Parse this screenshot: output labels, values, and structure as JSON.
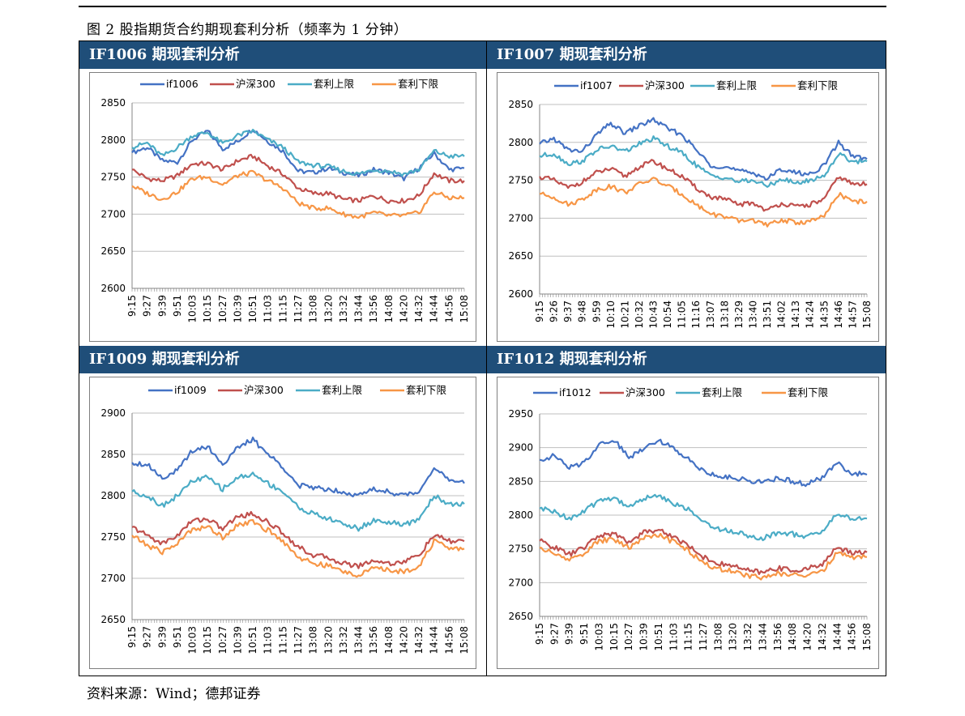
{
  "caption": "图 2 股指期货合约期现套利分析（频率为 1 分钟）",
  "source": "资料来源：Wind；德邦证券",
  "colors": {
    "header_bg": "#1f4e79",
    "futures": "#4472c4",
    "hs300": "#c0504d",
    "upper": "#4bacc6",
    "lower": "#f79646",
    "grid": "#bfbfbf"
  },
  "panels": [
    {
      "header": "IF1006 期现套利分析"
    },
    {
      "header": "IF1007 期现套利分析"
    },
    {
      "header": "IF1009 期现套利分析"
    },
    {
      "header": "IF1012 期现套利分析"
    }
  ],
  "chart_data": [
    {
      "type": "line",
      "title": "",
      "x": [
        "9:15",
        "9:27",
        "9:39",
        "9:51",
        "10:03",
        "10:15",
        "10:27",
        "10:39",
        "10:51",
        "11:03",
        "11:15",
        "11:27",
        "13:08",
        "13:20",
        "13:32",
        "13:44",
        "13:56",
        "14:08",
        "14:20",
        "14:32",
        "14:44",
        "14:56",
        "15:08"
      ],
      "ylim": [
        2600,
        2850
      ],
      "yticks": [
        2600,
        2650,
        2700,
        2750,
        2800,
        2850
      ],
      "legend_position": "top",
      "series": [
        {
          "name": "if1006",
          "values": [
            2783,
            2790,
            2772,
            2770,
            2800,
            2812,
            2788,
            2798,
            2815,
            2798,
            2785,
            2758,
            2756,
            2762,
            2756,
            2752,
            2760,
            2756,
            2748,
            2762,
            2782,
            2760,
            2762
          ]
        },
        {
          "name": "沪深300",
          "values": [
            2760,
            2748,
            2745,
            2752,
            2768,
            2768,
            2760,
            2772,
            2778,
            2765,
            2754,
            2735,
            2728,
            2728,
            2720,
            2718,
            2725,
            2718,
            2718,
            2725,
            2755,
            2745,
            2745
          ]
        },
        {
          "name": "套利上限",
          "values": [
            2790,
            2796,
            2778,
            2790,
            2806,
            2810,
            2795,
            2806,
            2812,
            2800,
            2790,
            2770,
            2766,
            2764,
            2758,
            2754,
            2760,
            2758,
            2754,
            2760,
            2785,
            2778,
            2778
          ]
        },
        {
          "name": "套利下限",
          "values": [
            2738,
            2728,
            2720,
            2730,
            2748,
            2750,
            2740,
            2752,
            2756,
            2745,
            2735,
            2715,
            2708,
            2708,
            2700,
            2696,
            2702,
            2698,
            2698,
            2702,
            2730,
            2722,
            2722
          ]
        }
      ]
    },
    {
      "type": "line",
      "title": "",
      "x": [
        "9:15",
        "9:26",
        "9:37",
        "9:48",
        "9:59",
        "10:10",
        "10:21",
        "10:32",
        "10:43",
        "10:54",
        "11:05",
        "11:16",
        "13:07",
        "13:18",
        "13:29",
        "13:40",
        "13:51",
        "14:02",
        "14:13",
        "14:24",
        "14:35",
        "14:46",
        "14:57",
        "15:08"
      ],
      "ylim": [
        2600,
        2850
      ],
      "yticks": [
        2600,
        2650,
        2700,
        2750,
        2800,
        2850
      ],
      "legend_position": "top",
      "series": [
        {
          "name": "if1007",
          "values": [
            2798,
            2805,
            2790,
            2788,
            2810,
            2825,
            2812,
            2822,
            2830,
            2818,
            2810,
            2790,
            2770,
            2768,
            2762,
            2760,
            2752,
            2765,
            2760,
            2758,
            2770,
            2800,
            2782,
            2778
          ]
        },
        {
          "name": "沪深300",
          "values": [
            2755,
            2750,
            2740,
            2748,
            2760,
            2765,
            2755,
            2768,
            2775,
            2765,
            2755,
            2740,
            2728,
            2725,
            2718,
            2720,
            2710,
            2720,
            2715,
            2718,
            2725,
            2755,
            2745,
            2745
          ]
        },
        {
          "name": "套利上限",
          "values": [
            2782,
            2785,
            2772,
            2775,
            2790,
            2795,
            2788,
            2798,
            2805,
            2795,
            2786,
            2770,
            2756,
            2754,
            2748,
            2750,
            2742,
            2752,
            2746,
            2750,
            2756,
            2785,
            2775,
            2775
          ]
        },
        {
          "name": "套利下限",
          "values": [
            2732,
            2728,
            2718,
            2725,
            2738,
            2742,
            2734,
            2745,
            2752,
            2742,
            2732,
            2718,
            2706,
            2702,
            2696,
            2698,
            2690,
            2698,
            2694,
            2696,
            2702,
            2732,
            2722,
            2722
          ]
        }
      ]
    },
    {
      "type": "line",
      "title": "",
      "x": [
        "9:15",
        "9:27",
        "9:39",
        "9:51",
        "10:03",
        "10:15",
        "10:27",
        "10:39",
        "10:51",
        "11:03",
        "11:15",
        "11:27",
        "13:08",
        "13:20",
        "13:32",
        "13:44",
        "13:56",
        "14:08",
        "14:20",
        "14:32",
        "14:44",
        "14:56",
        "15:08"
      ],
      "ylim": [
        2650,
        2900
      ],
      "yticks": [
        2650,
        2700,
        2750,
        2800,
        2850,
        2900
      ],
      "legend_position": "top",
      "series": [
        {
          "name": "if1009",
          "values": [
            2840,
            2838,
            2822,
            2830,
            2855,
            2860,
            2838,
            2858,
            2868,
            2850,
            2835,
            2812,
            2810,
            2808,
            2805,
            2800,
            2808,
            2805,
            2800,
            2805,
            2835,
            2818,
            2815
          ]
        },
        {
          "name": "沪深300",
          "values": [
            2762,
            2752,
            2742,
            2752,
            2770,
            2772,
            2760,
            2775,
            2778,
            2768,
            2755,
            2738,
            2728,
            2725,
            2718,
            2715,
            2722,
            2718,
            2720,
            2728,
            2752,
            2745,
            2745
          ]
        },
        {
          "name": "套利上限",
          "values": [
            2805,
            2800,
            2788,
            2800,
            2818,
            2822,
            2808,
            2822,
            2826,
            2815,
            2805,
            2786,
            2778,
            2772,
            2766,
            2760,
            2770,
            2768,
            2764,
            2772,
            2800,
            2790,
            2790
          ]
        },
        {
          "name": "套利下限",
          "values": [
            2752,
            2740,
            2732,
            2742,
            2760,
            2762,
            2750,
            2765,
            2768,
            2758,
            2745,
            2726,
            2718,
            2715,
            2708,
            2704,
            2712,
            2710,
            2708,
            2715,
            2745,
            2736,
            2736
          ]
        }
      ]
    },
    {
      "type": "line",
      "title": "",
      "x": [
        "9:15",
        "9:27",
        "9:39",
        "9:51",
        "10:03",
        "10:15",
        "10:27",
        "10:39",
        "10:51",
        "11:03",
        "11:15",
        "11:27",
        "13:08",
        "13:20",
        "13:32",
        "13:44",
        "13:56",
        "14:08",
        "14:20",
        "14:32",
        "14:44",
        "14:56",
        "15:08"
      ],
      "ylim": [
        2650,
        2950
      ],
      "yticks": [
        2650,
        2700,
        2750,
        2800,
        2850,
        2900,
        2950
      ],
      "legend_position": "top",
      "series": [
        {
          "name": "if1012",
          "values": [
            2882,
            2888,
            2870,
            2878,
            2905,
            2912,
            2885,
            2900,
            2912,
            2898,
            2885,
            2865,
            2858,
            2855,
            2852,
            2848,
            2855,
            2850,
            2846,
            2855,
            2878,
            2862,
            2860
          ]
        },
        {
          "name": "沪深300",
          "values": [
            2762,
            2752,
            2742,
            2752,
            2770,
            2772,
            2760,
            2775,
            2778,
            2768,
            2755,
            2738,
            2728,
            2725,
            2718,
            2715,
            2722,
            2718,
            2720,
            2728,
            2752,
            2745,
            2745
          ]
        },
        {
          "name": "套利上限",
          "values": [
            2810,
            2805,
            2795,
            2805,
            2822,
            2826,
            2812,
            2825,
            2828,
            2818,
            2808,
            2790,
            2780,
            2776,
            2770,
            2766,
            2774,
            2772,
            2768,
            2776,
            2802,
            2795,
            2795
          ]
        },
        {
          "name": "套利下限",
          "values": [
            2752,
            2742,
            2734,
            2744,
            2762,
            2764,
            2752,
            2767,
            2770,
            2760,
            2747,
            2730,
            2720,
            2717,
            2710,
            2707,
            2714,
            2712,
            2710,
            2717,
            2744,
            2738,
            2738
          ]
        }
      ]
    }
  ]
}
